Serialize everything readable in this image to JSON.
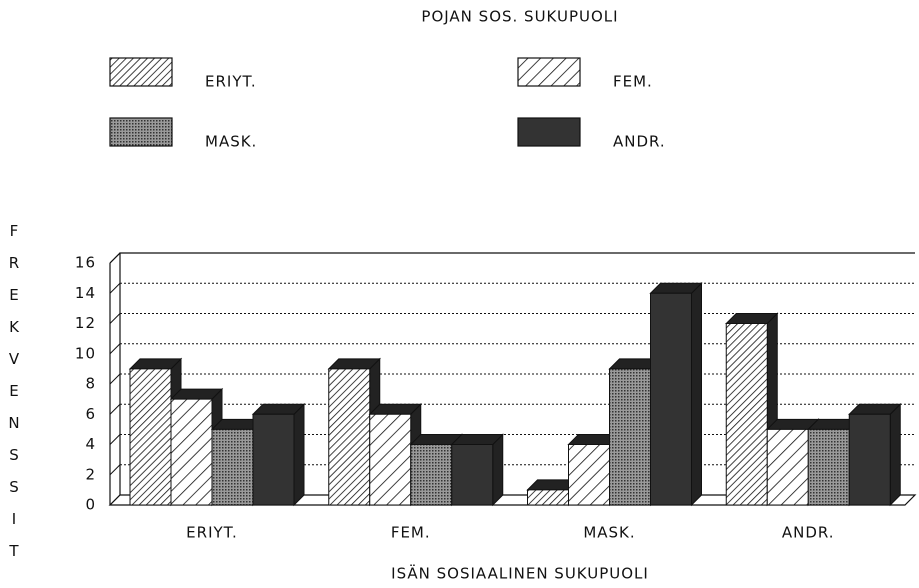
{
  "chart_data": {
    "type": "bar3d",
    "legend_title": "POJAN SOS. SUKUPUOLI",
    "x_label": "ISÄN SOSIAALINEN SUKUPUOLI",
    "y_label": "FREKVENSSIT",
    "categories": [
      "ERIYT.",
      "FEM.",
      "MASK.",
      "ANDR."
    ],
    "series": [
      {
        "name": "ERIYT.",
        "color": "#ffffff",
        "values": [
          9,
          9,
          1,
          12
        ]
      },
      {
        "name": "FEM.",
        "color": "#ffffff",
        "values": [
          7,
          6,
          4,
          5
        ]
      },
      {
        "name": "MASK.",
        "color": "#8a8a8a",
        "values": [
          5,
          4,
          9,
          5
        ]
      },
      {
        "name": "ANDR.",
        "color": "#333333",
        "values": [
          6,
          4,
          14,
          6
        ]
      }
    ],
    "ylim": [
      0,
      16
    ],
    "yticks": [
      0,
      2,
      4,
      6,
      8,
      10,
      12,
      14,
      16
    ],
    "grid": true
  }
}
